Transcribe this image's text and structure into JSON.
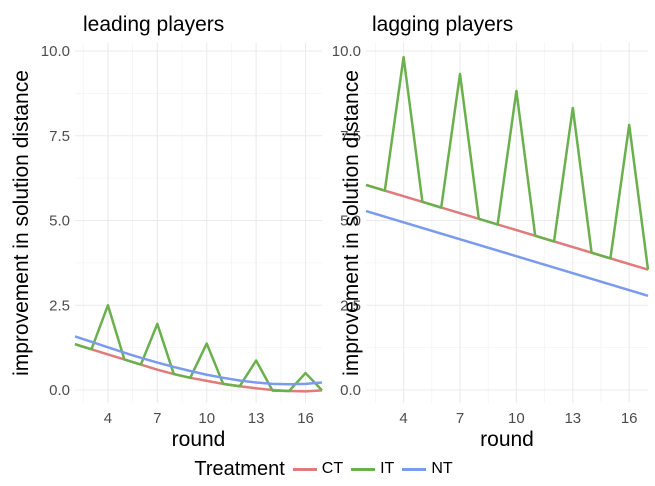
{
  "chart_data": [
    {
      "type": "line",
      "title": "leading players",
      "xlabel": "round",
      "ylabel": "improvement in solution distance",
      "xlim": [
        2,
        17
      ],
      "ylim": [
        0,
        10
      ],
      "x_ticks": [
        "4",
        "7",
        "10",
        "13",
        "16"
      ],
      "y_ticks": [
        "0.0",
        "2.5",
        "5.0",
        "7.5",
        "10.0"
      ],
      "grid": true,
      "series": [
        {
          "name": "CT",
          "color": "#e07b7b",
          "x": [
            2,
            3,
            4,
            5,
            6,
            7,
            8,
            9,
            10,
            11,
            12,
            13,
            14,
            15,
            16,
            17
          ],
          "values": [
            1.35,
            1.2,
            1.05,
            0.9,
            0.75,
            0.6,
            0.47,
            0.36,
            0.27,
            0.18,
            0.11,
            0.05,
            0.0,
            -0.03,
            -0.04,
            -0.01
          ]
        },
        {
          "name": "IT",
          "color": "#6ab04c",
          "x": [
            2,
            3,
            4,
            5,
            6,
            7,
            8,
            9,
            10,
            11,
            12,
            13,
            14,
            15,
            16,
            17
          ],
          "values": [
            1.35,
            1.2,
            2.5,
            0.9,
            0.75,
            1.95,
            0.47,
            0.36,
            1.37,
            0.18,
            0.11,
            0.87,
            -0.02,
            -0.03,
            0.5,
            -0.01
          ]
        },
        {
          "name": "NT",
          "color": "#7b9bef",
          "x": [
            2,
            3,
            4,
            5,
            6,
            7,
            8,
            9,
            10,
            11,
            12,
            13,
            14,
            15,
            16,
            17
          ],
          "values": [
            1.58,
            1.42,
            1.26,
            1.1,
            0.95,
            0.81,
            0.68,
            0.56,
            0.45,
            0.36,
            0.28,
            0.22,
            0.18,
            0.17,
            0.18,
            0.22
          ]
        }
      ]
    },
    {
      "type": "line",
      "title": "lagging players",
      "xlabel": "round",
      "ylabel": "improvement in solution distance",
      "xlim": [
        2,
        17
      ],
      "ylim": [
        0,
        10
      ],
      "x_ticks": [
        "4",
        "7",
        "10",
        "13",
        "16"
      ],
      "y_ticks": [
        "0.0",
        "2.5",
        "5.0",
        "7.5",
        "10.0"
      ],
      "grid": true,
      "series": [
        {
          "name": "CT",
          "color": "#e07b7b",
          "x": [
            2,
            17
          ],
          "values": [
            6.05,
            3.55
          ]
        },
        {
          "name": "IT",
          "color": "#6ab04c",
          "x": [
            2,
            3,
            4,
            5,
            6,
            7,
            8,
            9,
            10,
            11,
            12,
            13,
            14,
            15,
            16,
            17
          ],
          "values": [
            6.05,
            5.88,
            9.82,
            5.55,
            5.38,
            9.32,
            5.05,
            4.88,
            8.82,
            4.55,
            4.38,
            8.32,
            4.05,
            3.88,
            7.82,
            3.55
          ]
        },
        {
          "name": "NT",
          "color": "#7b9bef",
          "x": [
            2,
            17
          ],
          "values": [
            5.28,
            2.78
          ]
        }
      ]
    }
  ],
  "legend": {
    "title": "Treatment",
    "items": [
      {
        "label": "CT",
        "color": "#e07b7b"
      },
      {
        "label": "IT",
        "color": "#6ab04c"
      },
      {
        "label": "NT",
        "color": "#7b9bef"
      }
    ]
  }
}
